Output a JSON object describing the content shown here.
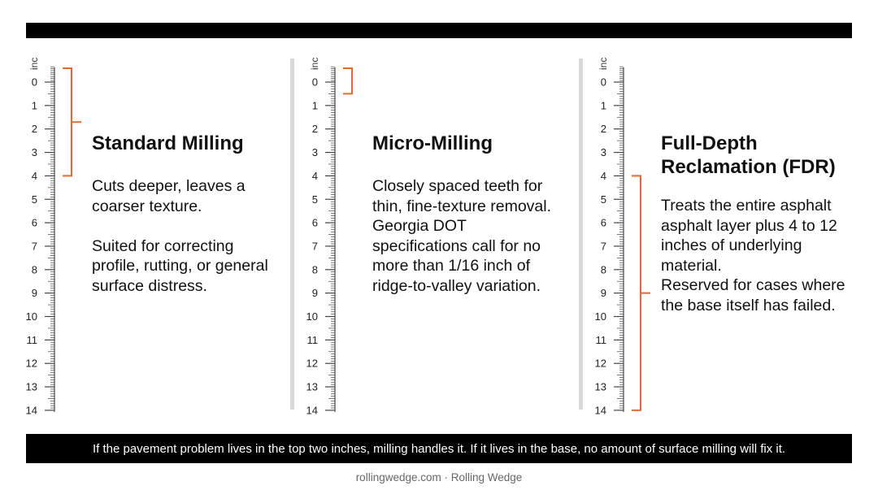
{
  "unit_label": "inc",
  "ruler_ticks": [
    "0",
    "1",
    "2",
    "3",
    "4",
    "5",
    "6",
    "7",
    "8",
    "9",
    "10",
    "11",
    "12",
    "13",
    "14"
  ],
  "ruler_max": 14,
  "accent_color": "#e8692e",
  "columns": [
    {
      "title": "Standard Milling",
      "range_in": [
        0,
        4
      ],
      "paragraphs": [
        "Cuts deeper, leaves a coarser texture.",
        "Suited for correcting profile, rutting, or general surface distress."
      ]
    },
    {
      "title": "Micro-Milling",
      "range_in": [
        0,
        0.5
      ],
      "paragraphs": [
        "Closely spaced teeth for thin, fine-texture removal.",
        "Georgia DOT specifications call for no more than 1/16 inch of ridge-to-valley variation."
      ]
    },
    {
      "title": "Full-Depth Reclamation (FDR)",
      "range_in": [
        4,
        14
      ],
      "paragraphs": [
        "Treats the entire asphalt asphalt layer plus 4 to 12 inches of underlying material.",
        "Reserved for cases where the base itself has failed."
      ]
    }
  ],
  "footer": {
    "message": "If the pavement problem lives in the top two inches, milling handles it. If it lives in the base, no amount of surface milling will fix it.",
    "credit": "rollingwedge.com · Rolling Wedge"
  }
}
